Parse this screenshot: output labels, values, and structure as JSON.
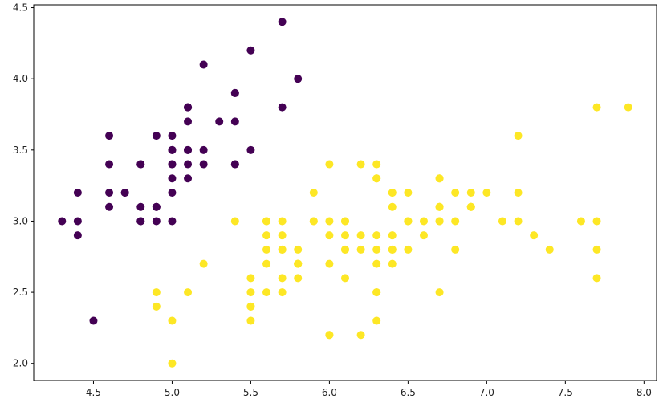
{
  "chart_data": {
    "type": "scatter",
    "title": "",
    "xlabel": "",
    "ylabel": "",
    "xlim": [
      4.12,
      8.08
    ],
    "ylim": [
      1.88,
      4.52
    ],
    "xticks": [
      4.5,
      5.0,
      5.5,
      6.0,
      6.5,
      7.0,
      7.5,
      8.0
    ],
    "xtick_labels": [
      "4.5",
      "5.0",
      "5.5",
      "6.0",
      "6.5",
      "7.0",
      "7.5",
      "8.0"
    ],
    "yticks": [
      2.0,
      2.5,
      3.0,
      3.5,
      4.0,
      4.5
    ],
    "ytick_labels": [
      "2.0",
      "2.5",
      "3.0",
      "3.5",
      "4.0",
      "4.5"
    ],
    "grid": false,
    "legend": "none",
    "series": [
      {
        "color": "#440154",
        "points": [
          [
            5.1,
            3.5
          ],
          [
            4.9,
            3.0
          ],
          [
            4.7,
            3.2
          ],
          [
            4.6,
            3.1
          ],
          [
            5.0,
            3.6
          ],
          [
            5.4,
            3.9
          ],
          [
            4.6,
            3.4
          ],
          [
            5.0,
            3.4
          ],
          [
            4.4,
            2.9
          ],
          [
            4.9,
            3.1
          ],
          [
            5.4,
            3.7
          ],
          [
            4.8,
            3.4
          ],
          [
            4.8,
            3.0
          ],
          [
            4.3,
            3.0
          ],
          [
            5.8,
            4.0
          ],
          [
            5.7,
            4.4
          ],
          [
            5.4,
            3.9
          ],
          [
            5.1,
            3.5
          ],
          [
            5.7,
            3.8
          ],
          [
            5.1,
            3.8
          ],
          [
            5.4,
            3.4
          ],
          [
            5.1,
            3.7
          ],
          [
            4.6,
            3.6
          ],
          [
            5.1,
            3.3
          ],
          [
            4.8,
            3.4
          ],
          [
            5.0,
            3.0
          ],
          [
            5.0,
            3.4
          ],
          [
            5.2,
            3.5
          ],
          [
            5.2,
            3.4
          ],
          [
            4.7,
            3.2
          ],
          [
            4.8,
            3.1
          ],
          [
            5.4,
            3.4
          ],
          [
            5.2,
            4.1
          ],
          [
            5.5,
            4.2
          ],
          [
            4.9,
            3.1
          ],
          [
            5.0,
            3.2
          ],
          [
            5.5,
            3.5
          ],
          [
            4.9,
            3.6
          ],
          [
            4.4,
            3.0
          ],
          [
            5.1,
            3.4
          ],
          [
            5.0,
            3.5
          ],
          [
            4.5,
            2.3
          ],
          [
            4.4,
            3.2
          ],
          [
            5.0,
            3.5
          ],
          [
            5.1,
            3.8
          ],
          [
            4.8,
            3.0
          ],
          [
            5.1,
            3.8
          ],
          [
            4.6,
            3.2
          ],
          [
            5.3,
            3.7
          ],
          [
            5.0,
            3.3
          ]
        ]
      },
      {
        "color": "#fde725",
        "points": [
          [
            7.0,
            3.2
          ],
          [
            6.4,
            3.2
          ],
          [
            6.9,
            3.1
          ],
          [
            5.5,
            2.3
          ],
          [
            6.5,
            2.8
          ],
          [
            5.7,
            2.8
          ],
          [
            6.3,
            3.3
          ],
          [
            4.9,
            2.4
          ],
          [
            6.6,
            2.9
          ],
          [
            5.2,
            2.7
          ],
          [
            5.0,
            2.0
          ],
          [
            5.9,
            3.0
          ],
          [
            6.0,
            2.2
          ],
          [
            6.1,
            2.9
          ],
          [
            5.6,
            2.9
          ],
          [
            6.7,
            3.1
          ],
          [
            5.6,
            3.0
          ],
          [
            5.8,
            2.7
          ],
          [
            6.2,
            2.2
          ],
          [
            5.6,
            2.5
          ],
          [
            5.9,
            3.2
          ],
          [
            6.1,
            2.8
          ],
          [
            6.3,
            2.5
          ],
          [
            6.1,
            2.8
          ],
          [
            6.4,
            2.9
          ],
          [
            6.6,
            3.0
          ],
          [
            6.8,
            2.8
          ],
          [
            6.7,
            3.0
          ],
          [
            6.0,
            2.9
          ],
          [
            5.7,
            2.6
          ],
          [
            5.5,
            2.4
          ],
          [
            5.5,
            2.4
          ],
          [
            5.8,
            2.7
          ],
          [
            6.0,
            2.7
          ],
          [
            5.4,
            3.0
          ],
          [
            6.0,
            3.4
          ],
          [
            6.7,
            3.1
          ],
          [
            6.3,
            2.3
          ],
          [
            5.6,
            3.0
          ],
          [
            5.5,
            2.5
          ],
          [
            5.5,
            2.6
          ],
          [
            6.1,
            3.0
          ],
          [
            5.8,
            2.6
          ],
          [
            5.0,
            2.3
          ],
          [
            5.6,
            2.7
          ],
          [
            5.7,
            3.0
          ],
          [
            5.7,
            2.9
          ],
          [
            6.2,
            2.9
          ],
          [
            5.1,
            2.5
          ],
          [
            5.7,
            2.8
          ],
          [
            6.3,
            3.3
          ],
          [
            5.8,
            2.7
          ],
          [
            7.1,
            3.0
          ],
          [
            6.3,
            2.9
          ],
          [
            6.5,
            3.0
          ],
          [
            7.6,
            3.0
          ],
          [
            4.9,
            2.5
          ],
          [
            7.3,
            2.9
          ],
          [
            6.7,
            2.5
          ],
          [
            7.2,
            3.6
          ],
          [
            6.5,
            3.2
          ],
          [
            6.4,
            2.7
          ],
          [
            6.8,
            3.0
          ],
          [
            5.7,
            2.5
          ],
          [
            5.8,
            2.8
          ],
          [
            6.4,
            3.2
          ],
          [
            6.5,
            3.0
          ],
          [
            7.7,
            3.8
          ],
          [
            7.7,
            2.6
          ],
          [
            6.0,
            2.2
          ],
          [
            6.9,
            3.2
          ],
          [
            5.6,
            2.8
          ],
          [
            7.7,
            2.8
          ],
          [
            6.3,
            2.7
          ],
          [
            6.7,
            3.3
          ],
          [
            7.2,
            3.2
          ],
          [
            6.2,
            2.8
          ],
          [
            6.1,
            3.0
          ],
          [
            6.4,
            2.8
          ],
          [
            7.2,
            3.0
          ],
          [
            7.4,
            2.8
          ],
          [
            7.9,
            3.8
          ],
          [
            6.4,
            2.8
          ],
          [
            6.3,
            2.8
          ],
          [
            6.1,
            2.6
          ],
          [
            7.7,
            3.0
          ],
          [
            6.3,
            3.4
          ],
          [
            6.4,
            3.1
          ],
          [
            6.0,
            3.0
          ],
          [
            6.9,
            3.1
          ],
          [
            6.7,
            3.1
          ],
          [
            6.9,
            3.1
          ],
          [
            5.8,
            2.7
          ],
          [
            6.8,
            3.2
          ],
          [
            6.7,
            3.3
          ],
          [
            6.7,
            3.0
          ],
          [
            6.3,
            2.5
          ],
          [
            6.5,
            3.0
          ],
          [
            6.2,
            3.4
          ],
          [
            5.9,
            3.0
          ]
        ]
      }
    ]
  }
}
